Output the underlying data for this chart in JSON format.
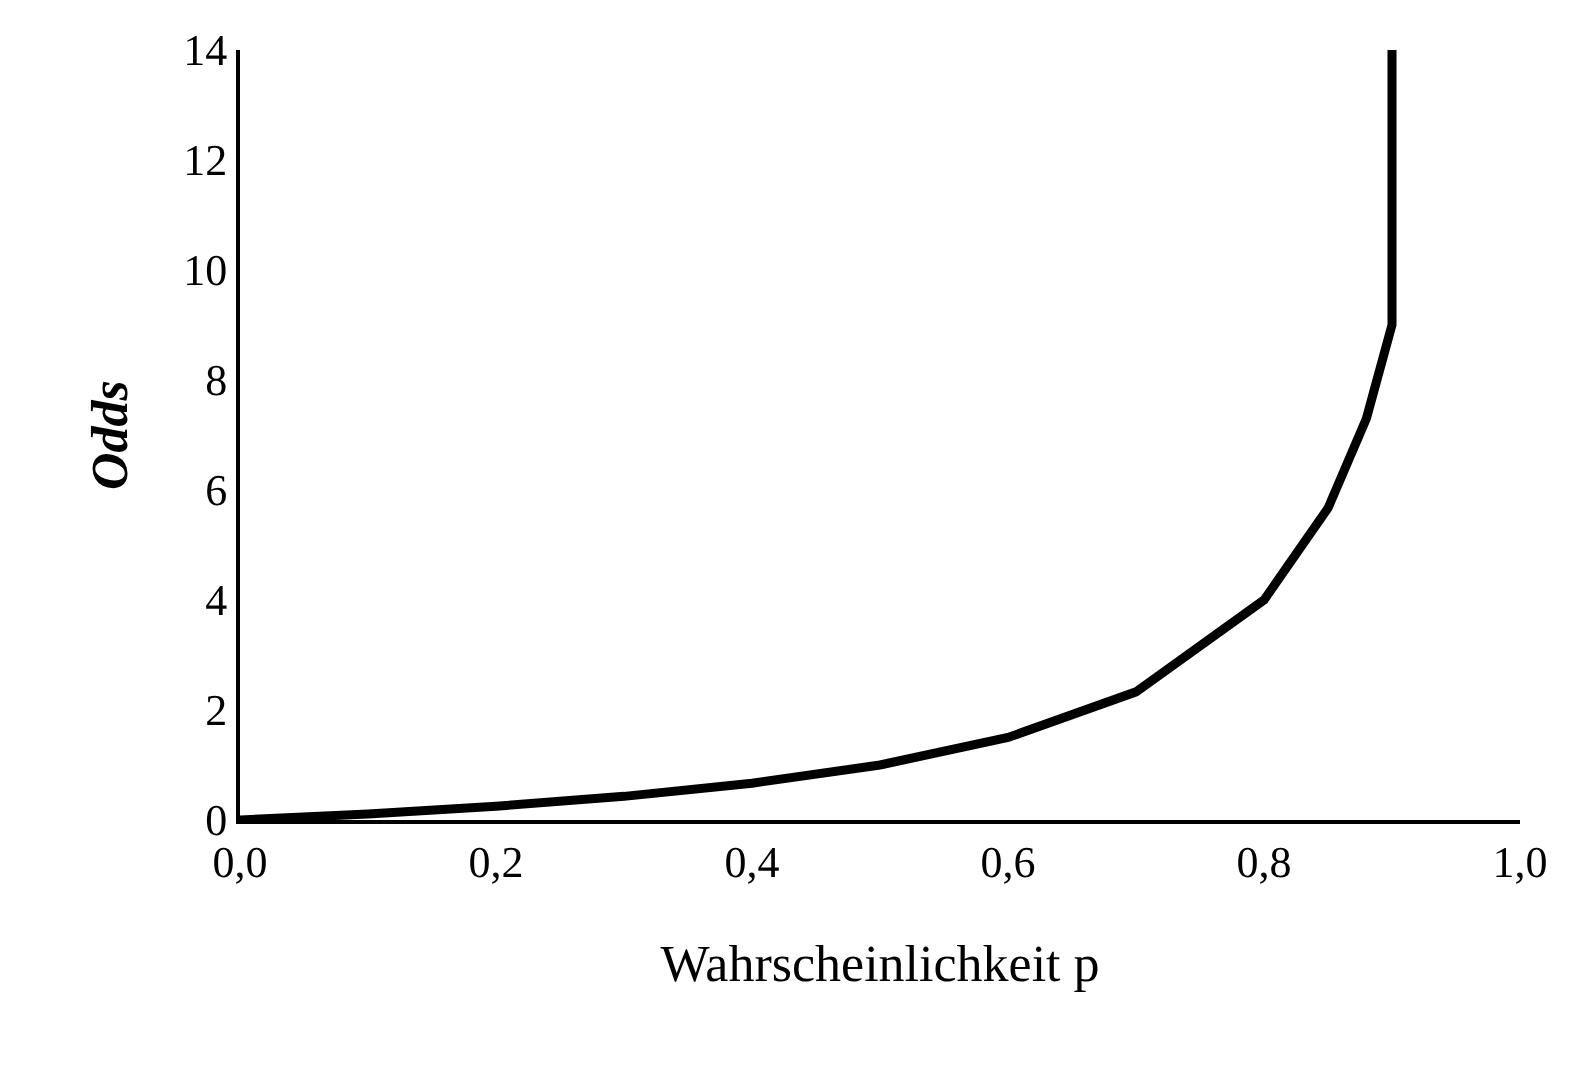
{
  "chart_data": {
    "type": "line",
    "xlabel": "Wahrscheinlichkeit p",
    "ylabel": "Odds",
    "x": [
      0,
      0.1,
      0.2,
      0.3,
      0.4,
      0.5,
      0.6,
      0.7,
      0.8,
      0.85,
      0.88,
      0.9,
      0.9
    ],
    "series": [
      {
        "color": "#000000",
        "values": [
          0,
          0.11,
          0.25,
          0.43,
          0.67,
          1,
          1.5,
          2.33,
          4,
          5.67,
          7.3,
          9,
          14
        ]
      }
    ],
    "xlim": [
      0,
      1
    ],
    "ylim": [
      0,
      14
    ],
    "xticks": [
      {
        "value": 0,
        "label": "0,0"
      },
      {
        "value": 0.2,
        "label": "0,2"
      },
      {
        "value": 0.4,
        "label": "0,4"
      },
      {
        "value": 0.6,
        "label": "0,6"
      },
      {
        "value": 0.8,
        "label": "0,8"
      },
      {
        "value": 1,
        "label": "1,0"
      }
    ],
    "yticks": [
      0,
      2,
      4,
      6,
      8,
      10,
      12,
      14
    ],
    "marker": "none",
    "line_style": "solid"
  }
}
